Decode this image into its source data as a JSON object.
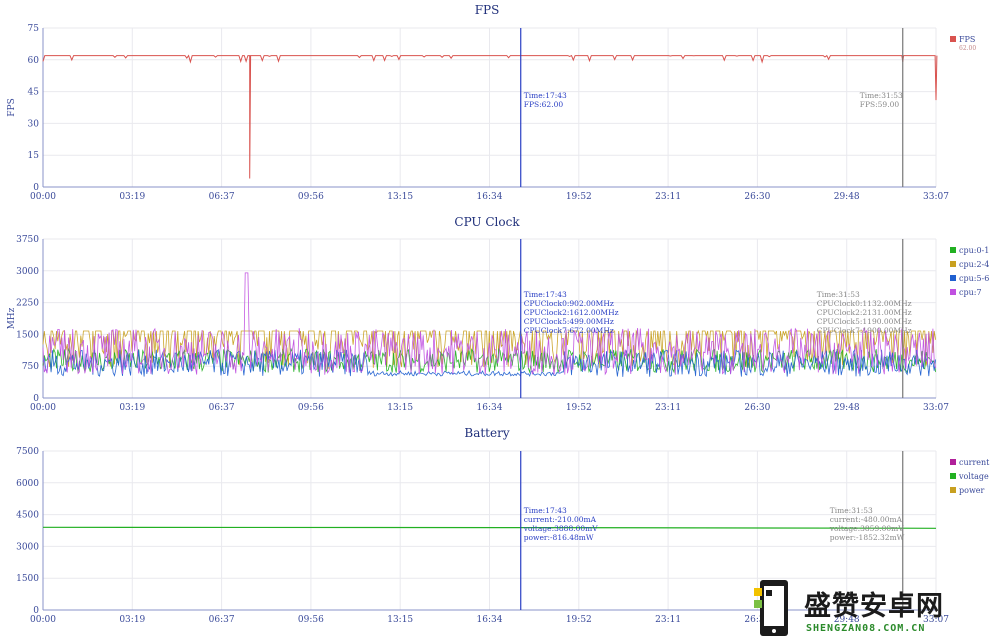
{
  "xticks": [
    "00:00",
    "03:19",
    "06:37",
    "09:56",
    "13:15",
    "16:34",
    "19:52",
    "23:11",
    "26:30",
    "29:48",
    "33:07"
  ],
  "panels": [
    {
      "title": "FPS",
      "ylabel": "FPS",
      "yticks": [
        "0",
        "15",
        "30",
        "45",
        "60",
        "75"
      ],
      "legend": [
        {
          "label": "FPS",
          "color": "#d9534f",
          "sub": "62.00"
        }
      ],
      "tooltip_main": [
        "Time:17:43",
        "FPS:62.00"
      ],
      "tooltip_ref": [
        "Time:31:53",
        "FPS:59.00"
      ]
    },
    {
      "title": "CPU Clock",
      "ylabel": "MHz",
      "yticks": [
        "0",
        "750",
        "1500",
        "2250",
        "3000",
        "3750"
      ],
      "legend": [
        {
          "label": "cpu:0-1",
          "color": "#22b022"
        },
        {
          "label": "cpu:2-4",
          "color": "#c8a020"
        },
        {
          "label": "cpu:5-6",
          "color": "#2060d0"
        },
        {
          "label": "cpu:7",
          "color": "#c050e0"
        }
      ],
      "tooltip_main": [
        "Time:17:43",
        "CPUClock0:902.00MHz",
        "CPUClock2:1612.00MHz",
        "CPUClock5:499.00MHz",
        "CPUClock7:672.00MHz"
      ],
      "tooltip_ref": [
        "Time:31:53",
        "CPUClock0:1132.00MHz",
        "CPUClock2:2131.00MHz",
        "CPUClock5:1190.00MHz",
        "CPUClock7:1900.00MHz"
      ]
    },
    {
      "title": "Battery",
      "ylabel": "",
      "yticks": [
        "0",
        "1500",
        "3000",
        "4500",
        "6000",
        "7500"
      ],
      "legend": [
        {
          "label": "current",
          "color": "#b0209a"
        },
        {
          "label": "voltage",
          "color": "#22b022"
        },
        {
          "label": "power",
          "color": "#c8a020"
        }
      ],
      "tooltip_main": [
        "Time:17:43",
        "current:-210.00mA",
        "voltage:3888.00mV",
        "power:-816.48mW"
      ],
      "tooltip_ref": [
        "Time:31:53",
        "current:-480.00mA",
        "voltage:3859.00mV",
        "power:-1852.32mW"
      ]
    }
  ],
  "watermark": {
    "title": "盛赞安卓网",
    "url": "SHENGZAN08.COM.CN"
  },
  "chart_data": [
    {
      "type": "line",
      "title": "FPS",
      "ylabel": "FPS",
      "ylim": [
        0,
        75
      ],
      "x_range": [
        "00:00",
        "33:07"
      ],
      "series": [
        {
          "name": "FPS",
          "color": "#d9534f",
          "x": [
            "00:00",
            "01:30",
            "03:00",
            "04:00",
            "05:20",
            "06:10",
            "06:37",
            "07:40",
            "08:00",
            "09:56",
            "12:00",
            "13:15",
            "14:30",
            "16:34",
            "17:43",
            "19:00",
            "20:00",
            "21:30",
            "23:11",
            "24:00",
            "25:30",
            "26:30",
            "28:00",
            "29:00",
            "29:48",
            "31:00",
            "31:53",
            "32:30",
            "33:00",
            "33:07"
          ],
          "values": [
            62,
            62,
            62,
            62,
            61,
            62,
            61,
            4,
            62,
            62,
            61,
            62,
            62,
            62,
            62,
            62,
            62,
            61,
            62,
            62,
            62,
            62,
            62,
            61,
            62,
            62,
            59,
            60,
            62,
            41
          ]
        }
      ],
      "cursor": {
        "time": "17:43",
        "values": {
          "FPS": 62.0
        }
      },
      "reference": {
        "time": "31:53",
        "values": {
          "FPS": 59.0
        }
      }
    },
    {
      "type": "line",
      "title": "CPU Clock",
      "ylabel": "MHz",
      "ylim": [
        0,
        3750
      ],
      "x_range": [
        "00:00",
        "33:07"
      ],
      "series": [
        {
          "name": "cpu:0-1",
          "color": "#22b022",
          "approx_range": [
            600,
            1300
          ]
        },
        {
          "name": "cpu:2-4",
          "color": "#c8a020",
          "approx_range": [
            700,
            2200
          ]
        },
        {
          "name": "cpu:5-6",
          "color": "#2060d0",
          "approx_range": [
            500,
            1300
          ]
        },
        {
          "name": "cpu:7",
          "color": "#c050e0",
          "approx_range": [
            550,
            3000
          ]
        }
      ],
      "cursor": {
        "time": "17:43",
        "values": {
          "CPUClock0": 902.0,
          "CPUClock2": 1612.0,
          "CPUClock5": 499.0,
          "CPUClock7": 672.0
        }
      },
      "reference": {
        "time": "31:53",
        "values": {
          "CPUClock0": 1132.0,
          "CPUClock2": 2131.0,
          "CPUClock5": 1190.0,
          "CPUClock7": 1900.0
        }
      }
    },
    {
      "type": "line",
      "title": "Battery",
      "ylim": [
        0,
        7500
      ],
      "x_range": [
        "00:00",
        "33:07"
      ],
      "series": [
        {
          "name": "current",
          "color": "#b0209a"
        },
        {
          "name": "voltage",
          "color": "#22b022",
          "x": [
            "00:00",
            "17:43",
            "31:53",
            "33:07"
          ],
          "values": [
            3900,
            3888,
            3859,
            3855
          ]
        },
        {
          "name": "power",
          "color": "#c8a020"
        }
      ],
      "cursor": {
        "time": "17:43",
        "values": {
          "current": -210.0,
          "voltage": 3888.0,
          "power": -816.48
        }
      },
      "reference": {
        "time": "31:53",
        "values": {
          "current": -480.0,
          "voltage": 3859.0,
          "power": -1852.32
        }
      }
    }
  ]
}
